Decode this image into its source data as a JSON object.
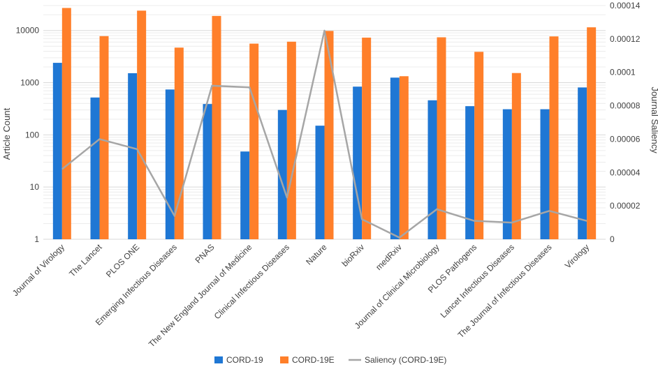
{
  "chart_data": {
    "type": "bar",
    "title": "",
    "categories": [
      "Journal of Virology",
      "The Lancet",
      "PLOS ONE",
      "Emerging Infectious Diseases",
      "PNAS",
      "The New England Journal of Medicine",
      "Clinical Infectious Diseases",
      "Nature",
      "bioRxiv",
      "medRxiv",
      "Journal of Clinical Microbiology",
      "PLOS Pathogens",
      "Lancet Infectious Diseases",
      "The Journal of Infectious Diseases",
      "Virology"
    ],
    "series": [
      {
        "name": "CORD-19",
        "type": "bar",
        "axis": "left",
        "color": "#1f77d4",
        "values": [
          2400,
          520,
          1520,
          740,
          390,
          48,
          300,
          150,
          840,
          1250,
          460,
          355,
          310,
          310,
          810
        ]
      },
      {
        "name": "CORD-19E",
        "type": "bar",
        "axis": "left",
        "color": "#ff7f2a",
        "values": [
          27000,
          7800,
          24000,
          4700,
          19000,
          5600,
          6100,
          9800,
          7300,
          1330,
          7400,
          3900,
          1530,
          7700,
          11500
        ]
      },
      {
        "name": "Saliency (CORD-19E)",
        "type": "line",
        "axis": "right",
        "color": "#a6a6a6",
        "values": [
          4.2e-05,
          6e-05,
          5.4e-05,
          1.4e-05,
          9.2e-05,
          9.1e-05,
          2.5e-05,
          0.000125,
          1.2e-05,
          1e-06,
          1.8e-05,
          1.1e-05,
          1e-05,
          1.7e-05,
          1.1e-05
        ]
      }
    ],
    "y_left": {
      "label": "Article Count",
      "scale": "log",
      "ylim": [
        1,
        30000
      ],
      "ticks": [
        1,
        10,
        100,
        1000,
        10000
      ],
      "tick_labels": [
        "1",
        "10",
        "100",
        "1000",
        "10000"
      ]
    },
    "y_right": {
      "label": "Journal Saliency",
      "scale": "linear",
      "ylim": [
        0,
        0.00014
      ],
      "ticks": [
        0,
        2e-05,
        4e-05,
        6e-05,
        8e-05,
        0.0001,
        0.00012,
        0.00014
      ],
      "tick_labels": [
        "0",
        "0.00002",
        "0.00004",
        "0.00006",
        "0.00008",
        "0.0001",
        "0.00012",
        "0.00014"
      ]
    },
    "grid": true,
    "legend_position": "bottom-center"
  }
}
